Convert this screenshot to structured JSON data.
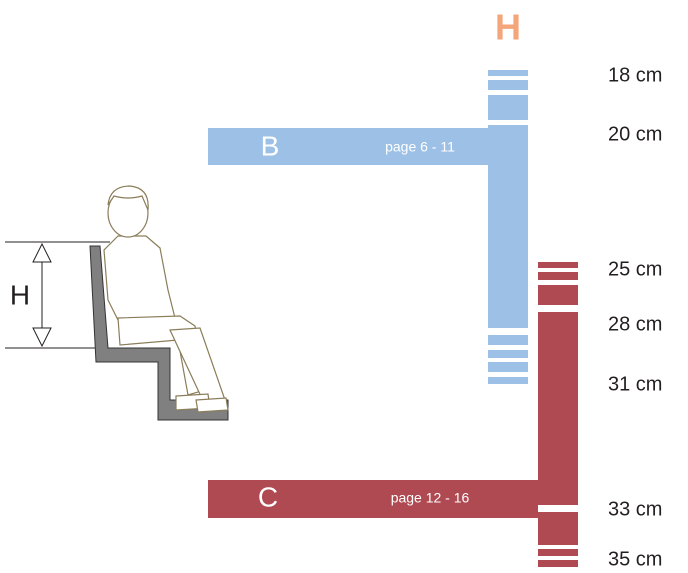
{
  "header": {
    "title": "H"
  },
  "sections": [
    {
      "label": "B",
      "pages": "page 6 - 11"
    },
    {
      "label": "C",
      "pages": "page 12 - 16"
    }
  ],
  "heights": [
    "18 cm",
    "20 cm",
    "25 cm",
    "28 cm",
    "31 cm",
    "33 cm",
    "35 cm"
  ],
  "figure": {
    "label": "H"
  }
}
